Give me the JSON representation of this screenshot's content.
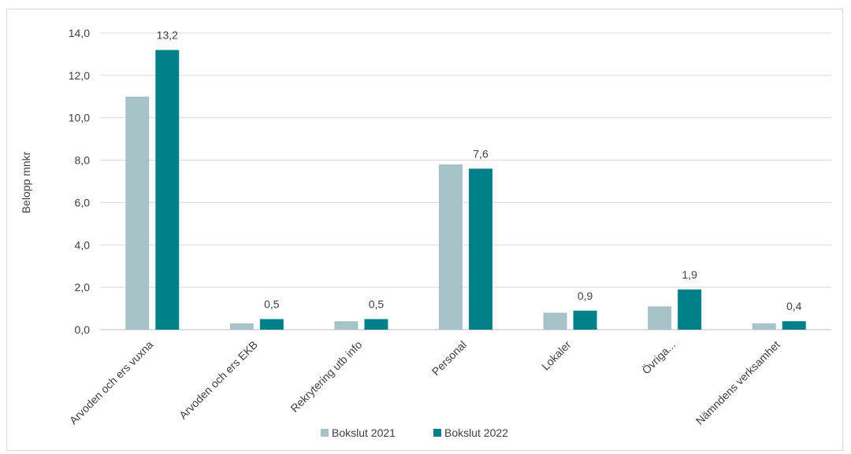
{
  "chart_data": {
    "type": "bar",
    "title": "",
    "xlabel": "",
    "ylabel": "Belopp mnkr",
    "ylim": [
      0,
      14
    ],
    "ytick_step": 2,
    "ytick_labels": [
      "0,0",
      "2,0",
      "4,0",
      "6,0",
      "8,0",
      "10,0",
      "12,0",
      "14,0"
    ],
    "grid": true,
    "legend_position": "bottom",
    "categories": [
      "Arvoden och ers vuxna",
      "Arvoden och ers EKB",
      "Rekrytering utb info",
      "Personal",
      "Lokaler",
      "Övriga...",
      "Nämndens verksamhet"
    ],
    "series": [
      {
        "name": "Bokslut 2021",
        "color": "#a8c3c8",
        "values": [
          11.0,
          0.3,
          0.4,
          7.8,
          0.8,
          1.1,
          0.3
        ],
        "data_labels": [
          "",
          "",
          "",
          "",
          "",
          "",
          ""
        ]
      },
      {
        "name": "Bokslut 2022",
        "color": "#00818a",
        "values": [
          13.2,
          0.5,
          0.5,
          7.6,
          0.9,
          1.9,
          0.4
        ],
        "data_labels": [
          "13,2",
          "0,5",
          "0,5",
          "7,6",
          "0,9",
          "1,9",
          "0,4"
        ]
      }
    ]
  }
}
